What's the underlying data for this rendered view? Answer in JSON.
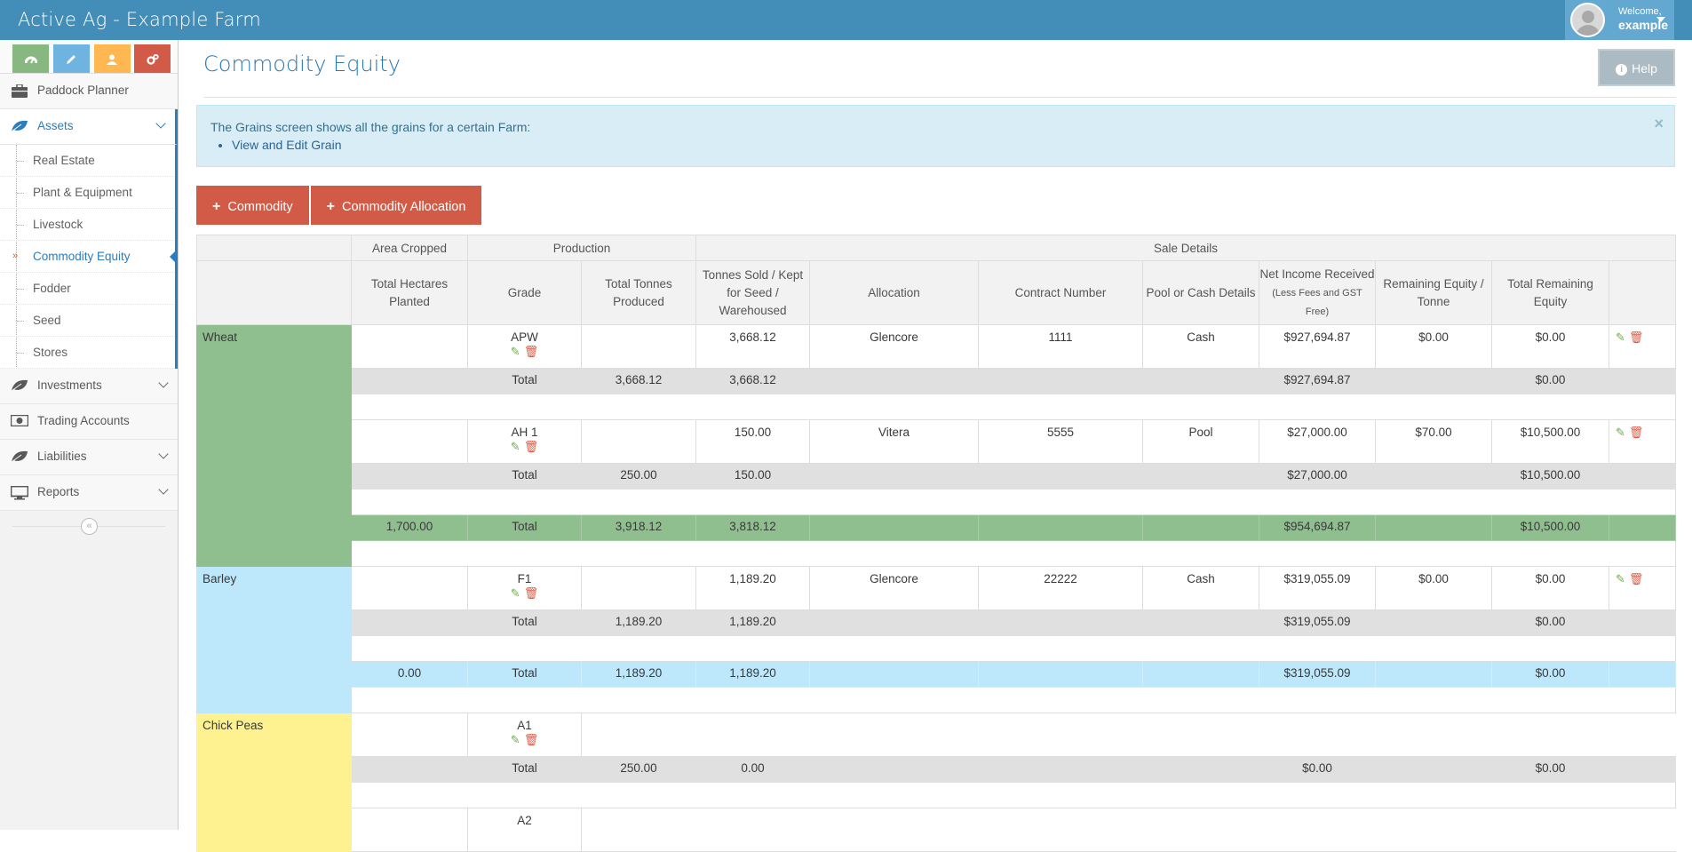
{
  "app": {
    "title": "Active Ag - Example Farm"
  },
  "user": {
    "welcome": "Welcome,",
    "name": "example"
  },
  "shortcuts": [
    {
      "name": "dashboard",
      "color": "#87b87f",
      "icon": "tachometer-icon"
    },
    {
      "name": "edit",
      "color": "#6fb3e0",
      "icon": "pencil-icon"
    },
    {
      "name": "user",
      "color": "#ffb752",
      "icon": "user-icon"
    },
    {
      "name": "settings",
      "color": "#d15b47",
      "icon": "cogs-icon"
    }
  ],
  "sidebar": {
    "paddock": "Paddock Planner",
    "assets": "Assets",
    "assets_sub": [
      "Real Estate",
      "Plant & Equipment",
      "Livestock",
      "Commodity Equity",
      "Fodder",
      "Seed",
      "Stores"
    ],
    "investments": "Investments",
    "trading": "Trading Accounts",
    "liabilities": "Liabilities",
    "reports": "Reports",
    "collapse": "«"
  },
  "page": {
    "title": "Commodity Equity",
    "help": "Help",
    "alert_text": "The Grains screen shows all the grains for a certain Farm:",
    "alert_link": "View and Edit Grain",
    "btn_commodity": "Commodity",
    "btn_allocation": "Commodity Allocation"
  },
  "table": {
    "groups": {
      "area": "Area Cropped",
      "production": "Production",
      "sale": "Sale Details"
    },
    "cols": {
      "hectares": "Total Hectares Planted",
      "grade": "Grade",
      "produced": "Total Tonnes Produced",
      "sold": "Tonnes Sold / Kept for Seed / Warehoused",
      "allocation": "Allocation",
      "contract": "Contract Number",
      "pool": "Pool or Cash Details",
      "net": "Net Income Received",
      "net_small": "(Less Fees and GST Free)",
      "remaining": "Remaining Equity / Tonne",
      "total_remaining": "Total Remaining Equity"
    },
    "total_label": "Total",
    "wheat": {
      "name": "Wheat",
      "apw": {
        "grade": "APW",
        "sold": "3,668.12",
        "allocation": "Glencore",
        "contract": "1111",
        "pool": "Cash",
        "net": "$927,694.87",
        "rem": "$0.00",
        "trem": "$0.00"
      },
      "apw_total": {
        "produced": "3,668.12",
        "sold": "3,668.12",
        "net": "$927,694.87",
        "trem": "$0.00"
      },
      "ah1": {
        "grade": "AH 1",
        "sold": "150.00",
        "allocation": "Vitera",
        "contract": "5555",
        "pool": "Pool",
        "net": "$27,000.00",
        "rem": "$70.00",
        "trem": "$10,500.00"
      },
      "ah1_total": {
        "produced": "250.00",
        "sold": "150.00",
        "net": "$27,000.00",
        "trem": "$10,500.00"
      },
      "grand": {
        "hectares": "1,700.00",
        "produced": "3,918.12",
        "sold": "3,818.12",
        "net": "$954,694.87",
        "trem": "$10,500.00"
      }
    },
    "barley": {
      "name": "Barley",
      "f1": {
        "grade": "F1",
        "sold": "1,189.20",
        "allocation": "Glencore",
        "contract": "22222",
        "pool": "Cash",
        "net": "$319,055.09",
        "rem": "$0.00",
        "trem": "$0.00"
      },
      "f1_total": {
        "produced": "1,189.20",
        "sold": "1,189.20",
        "net": "$319,055.09",
        "trem": "$0.00"
      },
      "grand": {
        "hectares": "0.00",
        "produced": "1,189.20",
        "sold": "1,189.20",
        "net": "$319,055.09",
        "trem": "$0.00"
      }
    },
    "chickpeas": {
      "name": "Chick Peas",
      "a1": {
        "grade": "A1"
      },
      "a1_total": {
        "produced": "250.00",
        "sold": "0.00",
        "net": "$0.00",
        "trem": "$0.00"
      },
      "a2": {
        "grade": "A2"
      }
    }
  }
}
